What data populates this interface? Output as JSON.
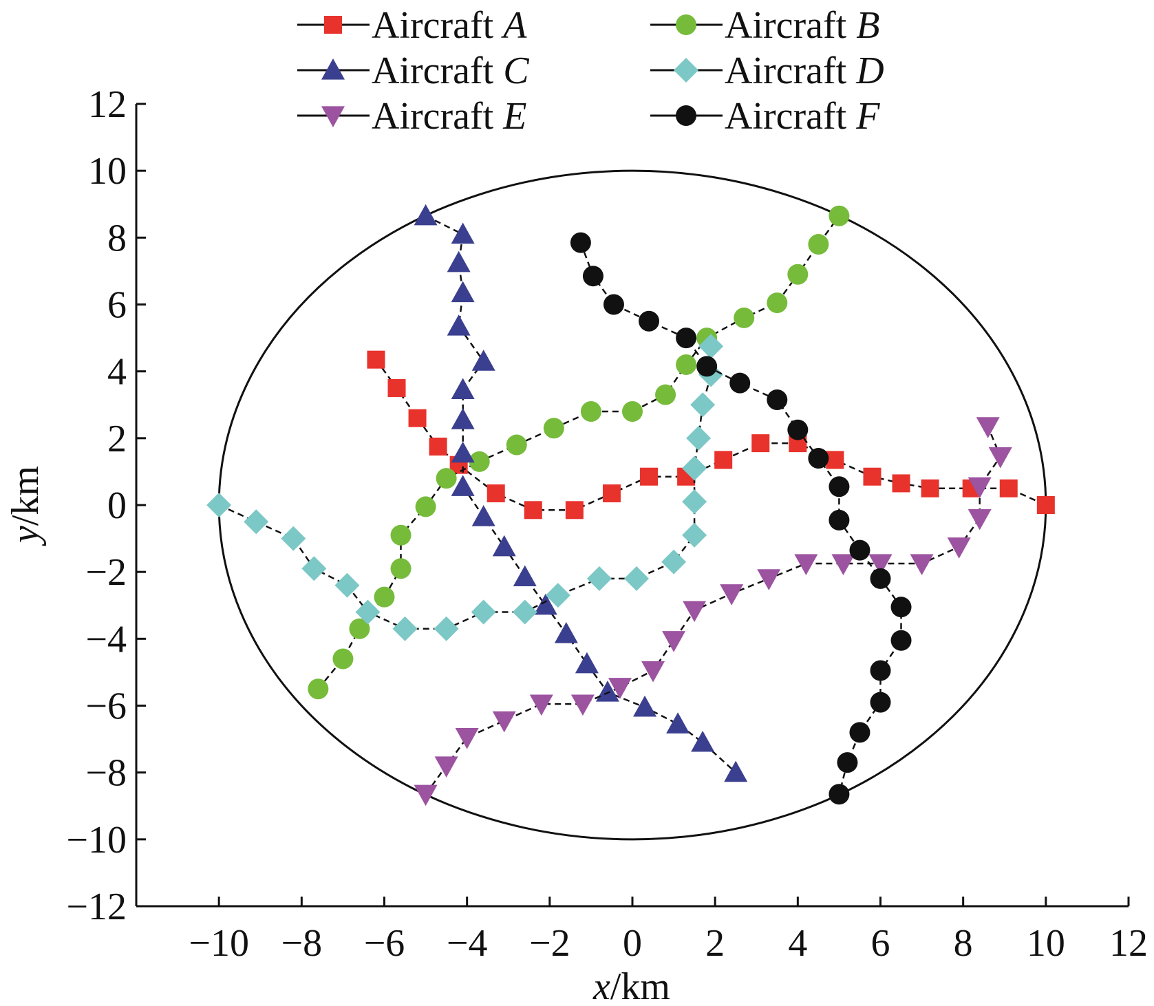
{
  "chart_data": {
    "type": "scatter",
    "xlabel": {
      "var": "x",
      "unit": "/km"
    },
    "ylabel": {
      "var": "y",
      "unit": "/km"
    },
    "xlim": [
      -12,
      12
    ],
    "ylim": [
      -12,
      12
    ],
    "x_ticks": [
      -10,
      -8,
      -6,
      -4,
      -2,
      0,
      2,
      4,
      6,
      8,
      10,
      12
    ],
    "y_ticks": [
      -12,
      -10,
      -8,
      -6,
      -4,
      -2,
      0,
      2,
      4,
      6,
      8,
      10,
      12
    ],
    "tick_labels_x": [
      "−10",
      "−8",
      "−6",
      "−4",
      "−2",
      "0",
      "2",
      "4",
      "6",
      "8",
      "10",
      "12"
    ],
    "tick_labels_y": [
      "−12",
      "−10",
      "−8",
      "−6",
      "−4",
      "−2",
      "0",
      "2",
      "4",
      "6",
      "8",
      "10",
      "12"
    ],
    "boundary_circle": {
      "cx": 0,
      "cy": 0,
      "r": 10
    },
    "grid": false,
    "legend_position": "top",
    "series": [
      {
        "name": "Aircraft A",
        "prefix": "Aircraft ",
        "letter": "A",
        "marker": "square",
        "color": "#e8322c",
        "points": [
          [
            -6.2,
            4.35
          ],
          [
            -5.7,
            3.5
          ],
          [
            -5.2,
            2.6
          ],
          [
            -4.7,
            1.75
          ],
          [
            -4.2,
            1.2
          ],
          [
            -3.3,
            0.35
          ],
          [
            -2.4,
            -0.15
          ],
          [
            -1.4,
            -0.15
          ],
          [
            -0.5,
            0.35
          ],
          [
            0.4,
            0.85
          ],
          [
            1.3,
            0.85
          ],
          [
            2.2,
            1.35
          ],
          [
            3.1,
            1.85
          ],
          [
            4.0,
            1.85
          ],
          [
            4.9,
            1.35
          ],
          [
            5.8,
            0.85
          ],
          [
            6.5,
            0.65
          ],
          [
            7.2,
            0.5
          ],
          [
            8.2,
            0.5
          ],
          [
            9.1,
            0.5
          ],
          [
            10.0,
            0.0
          ]
        ]
      },
      {
        "name": "Aircraft B",
        "prefix": "Aircraft ",
        "letter": "B",
        "marker": "circle",
        "color": "#76bb3a",
        "points": [
          [
            -7.6,
            -5.5
          ],
          [
            -7.0,
            -4.6
          ],
          [
            -6.6,
            -3.7
          ],
          [
            -6.0,
            -2.75
          ],
          [
            -5.6,
            -1.9
          ],
          [
            -5.6,
            -0.9
          ],
          [
            -5.0,
            -0.05
          ],
          [
            -4.5,
            0.8
          ],
          [
            -3.7,
            1.3
          ],
          [
            -2.8,
            1.8
          ],
          [
            -1.9,
            2.3
          ],
          [
            -1.0,
            2.8
          ],
          [
            0.0,
            2.8
          ],
          [
            0.8,
            3.3
          ],
          [
            1.3,
            4.2
          ],
          [
            1.8,
            5.0
          ],
          [
            2.7,
            5.6
          ],
          [
            3.5,
            6.05
          ],
          [
            4.0,
            6.9
          ],
          [
            4.5,
            7.8
          ],
          [
            5.0,
            8.65
          ]
        ]
      },
      {
        "name": "Aircraft C",
        "prefix": "Aircraft ",
        "letter": "C",
        "marker": "triangle-up",
        "color": "#3b3f8f",
        "points": [
          [
            -5.0,
            8.65
          ],
          [
            -4.1,
            8.1
          ],
          [
            -4.2,
            7.25
          ],
          [
            -4.1,
            6.35
          ],
          [
            -4.2,
            5.35
          ],
          [
            -3.6,
            4.3
          ],
          [
            -4.1,
            3.45
          ],
          [
            -4.1,
            2.55
          ],
          [
            -4.1,
            1.55
          ],
          [
            -4.1,
            0.55
          ],
          [
            -3.6,
            -0.35
          ],
          [
            -3.1,
            -1.25
          ],
          [
            -2.6,
            -2.15
          ],
          [
            -2.1,
            -3.0
          ],
          [
            -1.6,
            -3.85
          ],
          [
            -1.1,
            -4.75
          ],
          [
            -0.6,
            -5.6
          ],
          [
            0.3,
            -6.05
          ],
          [
            1.1,
            -6.55
          ],
          [
            1.7,
            -7.1
          ],
          [
            2.5,
            -8.0
          ]
        ]
      },
      {
        "name": "Aircraft D",
        "prefix": "Aircraft ",
        "letter": "D",
        "marker": "diamond",
        "color": "#7cc8c6",
        "points": [
          [
            -10.0,
            0.0
          ],
          [
            -9.1,
            -0.5
          ],
          [
            -8.2,
            -1.0
          ],
          [
            -7.7,
            -1.9
          ],
          [
            -6.9,
            -2.4
          ],
          [
            -6.4,
            -3.2
          ],
          [
            -5.5,
            -3.7
          ],
          [
            -4.5,
            -3.7
          ],
          [
            -3.6,
            -3.2
          ],
          [
            -2.6,
            -3.2
          ],
          [
            -1.8,
            -2.7
          ],
          [
            -0.8,
            -2.2
          ],
          [
            0.1,
            -2.2
          ],
          [
            1.0,
            -1.7
          ],
          [
            1.5,
            -0.9
          ],
          [
            1.5,
            0.1
          ],
          [
            1.5,
            1.1
          ],
          [
            1.6,
            2.0
          ],
          [
            1.7,
            3.0
          ],
          [
            1.9,
            3.9
          ],
          [
            1.9,
            4.75
          ]
        ]
      },
      {
        "name": "Aircraft E",
        "prefix": "Aircraft ",
        "letter": "E",
        "marker": "triangle-down",
        "color": "#9c53a0",
        "points": [
          [
            -5.0,
            -8.65
          ],
          [
            -4.5,
            -7.8
          ],
          [
            -4.0,
            -6.95
          ],
          [
            -3.1,
            -6.45
          ],
          [
            -2.2,
            -5.95
          ],
          [
            -1.2,
            -5.95
          ],
          [
            -0.3,
            -5.45
          ],
          [
            0.5,
            -4.95
          ],
          [
            1.0,
            -4.05
          ],
          [
            1.5,
            -3.15
          ],
          [
            2.4,
            -2.65
          ],
          [
            3.3,
            -2.2
          ],
          [
            4.2,
            -1.75
          ],
          [
            5.1,
            -1.75
          ],
          [
            6.0,
            -1.75
          ],
          [
            7.0,
            -1.75
          ],
          [
            7.9,
            -1.25
          ],
          [
            8.4,
            -0.4
          ],
          [
            8.4,
            0.55
          ],
          [
            8.9,
            1.45
          ],
          [
            8.6,
            2.35
          ]
        ]
      },
      {
        "name": "Aircraft F",
        "prefix": "Aircraft ",
        "letter": "F",
        "marker": "circle",
        "color": "#111111",
        "points": [
          [
            -1.25,
            7.85
          ],
          [
            -0.95,
            6.85
          ],
          [
            -0.45,
            6.0
          ],
          [
            0.4,
            5.5
          ],
          [
            1.3,
            5.0
          ],
          [
            1.8,
            4.15
          ],
          [
            2.6,
            3.65
          ],
          [
            3.5,
            3.15
          ],
          [
            4.0,
            2.25
          ],
          [
            4.5,
            1.4
          ],
          [
            5.0,
            0.55
          ],
          [
            5.0,
            -0.45
          ],
          [
            5.5,
            -1.35
          ],
          [
            6.0,
            -2.2
          ],
          [
            6.5,
            -3.05
          ],
          [
            6.5,
            -4.05
          ],
          [
            6.0,
            -4.95
          ],
          [
            6.0,
            -5.9
          ],
          [
            5.5,
            -6.8
          ],
          [
            5.2,
            -7.7
          ],
          [
            5.0,
            -8.65
          ]
        ]
      }
    ]
  }
}
